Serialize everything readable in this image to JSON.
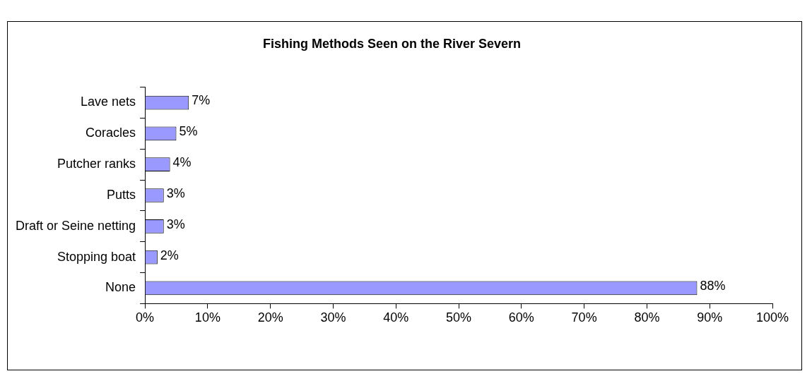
{
  "chart_data": {
    "type": "bar",
    "orientation": "horizontal",
    "title": "Fishing Methods Seen on the River Severn",
    "categories": [
      "Lave nets",
      "Coracles",
      "Putcher ranks",
      "Putts",
      "Draft or Seine netting",
      "Stopping boat",
      "None"
    ],
    "values": [
      7,
      5,
      4,
      3,
      3,
      2,
      88
    ],
    "value_labels": [
      "7%",
      "5%",
      "4%",
      "3%",
      "3%",
      "2%",
      "88%"
    ],
    "color": "#9999ff",
    "xlim": [
      0,
      100
    ],
    "xticks": [
      {
        "value": 0,
        "label": "0%"
      },
      {
        "value": 10,
        "label": "10%"
      },
      {
        "value": 20,
        "label": "20%"
      },
      {
        "value": 30,
        "label": "30%"
      },
      {
        "value": 40,
        "label": "40%"
      },
      {
        "value": 50,
        "label": "50%"
      },
      {
        "value": 60,
        "label": "60%"
      },
      {
        "value": 70,
        "label": "70%"
      },
      {
        "value": 80,
        "label": "80%"
      },
      {
        "value": 90,
        "label": "90%"
      },
      {
        "value": 100,
        "label": "100%"
      }
    ],
    "grid": false,
    "legend": false
  }
}
